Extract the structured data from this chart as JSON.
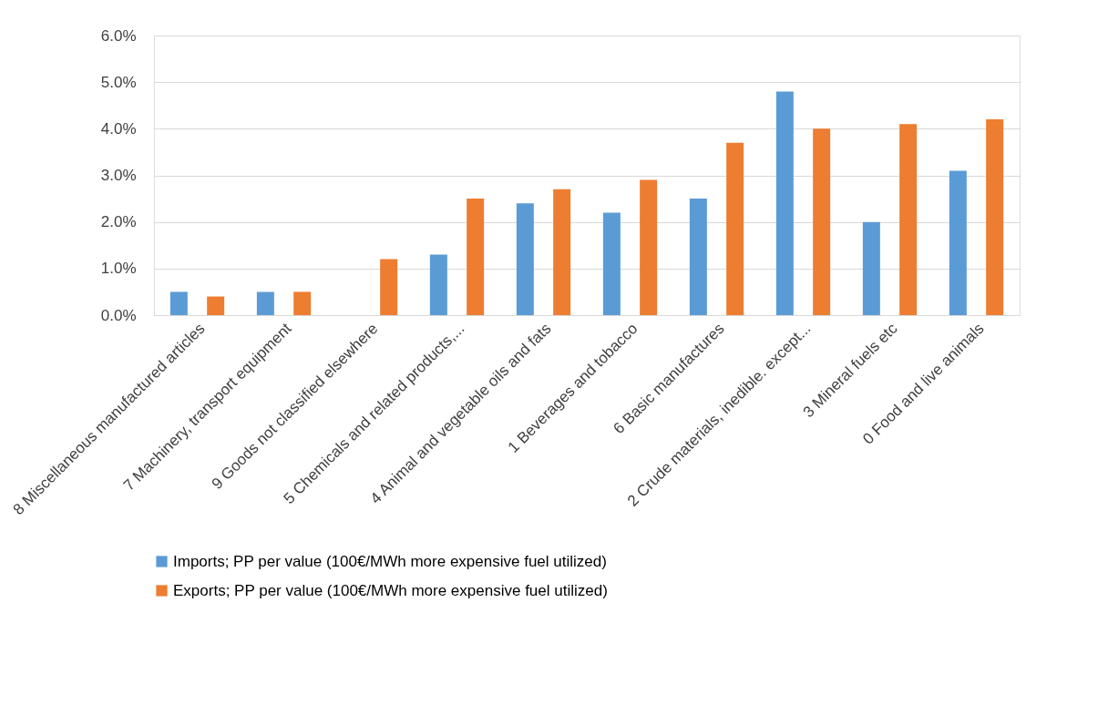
{
  "chart_data": {
    "type": "bar",
    "categories": [
      "8 Miscellaneous manufactured articles",
      "7 Machinery, transport equipment",
      "9 Goods not classified elsewhere",
      "5 Chemicals and related products,...",
      "4 Animal and vegetable oils and fats",
      "1 Beverages and tobacco",
      "6 Basic manufactures",
      "2 Crude materials, inedible. except...",
      "3 Mineral fuels etc",
      "0 Food and live animals"
    ],
    "series": [
      {
        "name": "Imports; PP per value (100€/MWh more expensive fuel utilized)",
        "color": "#5b9bd5",
        "values": [
          0.5,
          0.5,
          null,
          1.3,
          2.4,
          2.2,
          2.5,
          4.8,
          2.0,
          3.1
        ]
      },
      {
        "name": "Exports; PP per value (100€/MWh more expensive fuel utilized)",
        "color": "#ed7d31",
        "values": [
          0.4,
          0.5,
          1.2,
          2.5,
          2.7,
          2.9,
          3.7,
          4.0,
          4.1,
          4.2
        ]
      }
    ],
    "ylim": [
      0,
      6
    ],
    "yticks": [
      {
        "value": 0,
        "label": "0.0%"
      },
      {
        "value": 1,
        "label": "1.0%"
      },
      {
        "value": 2,
        "label": "2.0%"
      },
      {
        "value": 3,
        "label": "3.0%"
      },
      {
        "value": 4,
        "label": "4.0%"
      },
      {
        "value": 5,
        "label": "5.0%"
      },
      {
        "value": 6,
        "label": "6.0%"
      }
    ],
    "grid": "y",
    "legend": "bottom"
  }
}
